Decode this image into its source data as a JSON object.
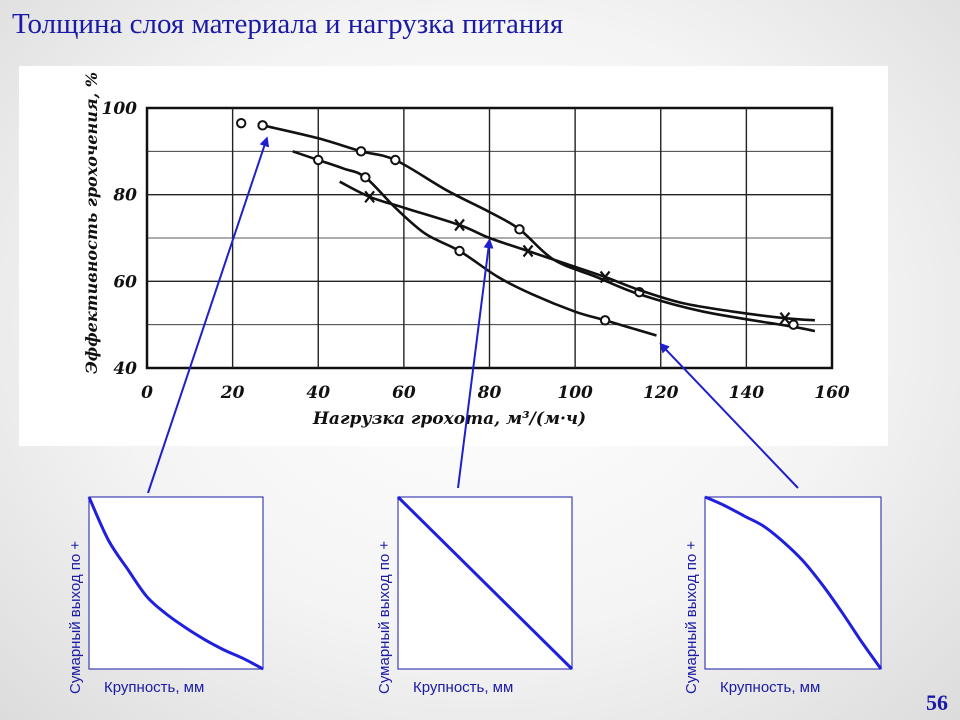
{
  "slide": {
    "title": "Толщина слоя материала и нагрузка питания",
    "page_number": "56"
  },
  "chart_data": [
    {
      "type": "line",
      "title": "",
      "xlabel": "Нагрузка грохота, м³/(м·ч)",
      "ylabel": "Эффективность грохочения, %",
      "xlim": [
        0,
        160
      ],
      "ylim": [
        40,
        100
      ],
      "x_ticks": [
        "0",
        "20",
        "40",
        "60",
        "80",
        "100",
        "120",
        "140",
        "160"
      ],
      "y_ticks": [
        "40",
        "60",
        "80",
        "100"
      ],
      "grid": true,
      "series": [
        {
          "marker": "circle",
          "points": [
            [
              22,
              96.5
            ],
            [
              27,
              96
            ],
            [
              50,
              90
            ],
            [
              58,
              88
            ],
            [
              87,
              72
            ],
            [
              115,
              57.5
            ],
            [
              151,
              50
            ]
          ],
          "curve": [
            [
              27,
              96
            ],
            [
              40,
              93
            ],
            [
              50,
              90
            ],
            [
              58,
              88
            ],
            [
              70,
              81
            ],
            [
              80,
              76
            ],
            [
              87,
              72
            ],
            [
              95,
              65
            ],
            [
              105,
              61
            ],
            [
              115,
              57
            ],
            [
              130,
              53
            ],
            [
              151,
              49.5
            ],
            [
              156,
              48.5
            ]
          ]
        },
        {
          "marker": "circle",
          "points": [
            [
              40,
              88
            ],
            [
              51,
              84
            ],
            [
              73,
              67
            ],
            [
              107,
              51
            ]
          ],
          "curve": [
            [
              34,
              90
            ],
            [
              40,
              88
            ],
            [
              46,
              86
            ],
            [
              51,
              84
            ],
            [
              58,
              77
            ],
            [
              65,
              71
            ],
            [
              73,
              67
            ],
            [
              82,
              61
            ],
            [
              90,
              57
            ],
            [
              100,
              53
            ],
            [
              107,
              51
            ],
            [
              119,
              47.5
            ]
          ]
        },
        {
          "marker": "cross",
          "points": [
            [
              52,
              79.5
            ],
            [
              73,
              73
            ],
            [
              89,
              67
            ],
            [
              107,
              61
            ],
            [
              149,
              51.5
            ]
          ],
          "curve": [
            [
              45,
              83
            ],
            [
              52,
              79.5
            ],
            [
              60,
              77
            ],
            [
              73,
              73
            ],
            [
              80,
              70
            ],
            [
              89,
              67
            ],
            [
              98,
              64
            ],
            [
              107,
              61
            ],
            [
              115,
              58
            ],
            [
              125,
              55
            ],
            [
              137,
              53
            ],
            [
              149,
              51.5
            ],
            [
              156,
              51
            ]
          ]
        }
      ]
    },
    {
      "type": "line",
      "xlabel": "Крупность, мм",
      "ylabel": "Сумарный выход по +",
      "shape": "convex-decreasing",
      "y": [
        1.0,
        0.75,
        0.58,
        0.42,
        0.32,
        0.24,
        0.17,
        0.11,
        0.06,
        0.0
      ]
    },
    {
      "type": "line",
      "xlabel": "Крупность, мм",
      "ylabel": "Сумарный выход по +",
      "shape": "linear-decreasing",
      "y": [
        1.0,
        0.889,
        0.778,
        0.667,
        0.556,
        0.444,
        0.333,
        0.222,
        0.111,
        0.0
      ]
    },
    {
      "type": "line",
      "xlabel": "Крупность, мм",
      "ylabel": "Сумарный выход по +",
      "shape": "concave-decreasing",
      "y": [
        1.0,
        0.95,
        0.89,
        0.83,
        0.74,
        0.63,
        0.49,
        0.33,
        0.16,
        0.0
      ]
    }
  ],
  "colors": {
    "accent": "#1a1aa6",
    "arrow": "#1f1fcc",
    "ink": "#111111"
  }
}
